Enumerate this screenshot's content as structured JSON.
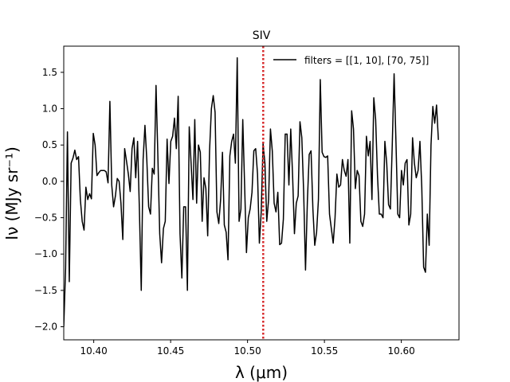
{
  "chart_data": {
    "type": "line",
    "title": "SIV",
    "xlabel": "λ (μm)",
    "ylabel": "Iν (MJy sr⁻¹)",
    "xlim": [
      10.3805,
      10.6375
    ],
    "ylim": [
      -2.18,
      1.86
    ],
    "xticks": [
      10.4,
      10.45,
      10.5,
      10.55,
      10.6
    ],
    "yticks": [
      -2.0,
      -1.5,
      -1.0,
      -0.5,
      0.0,
      0.5,
      1.0,
      1.5
    ],
    "grid": false,
    "legend_position": "top-right",
    "series": [
      {
        "name": "filters = [[1, 10], [70, 75]]",
        "color": "#000000",
        "x_start": 10.3805,
        "x_step": 0.0012,
        "values": [
          -2.0,
          -1.2,
          0.68,
          -1.38,
          0.25,
          0.32,
          0.43,
          0.3,
          0.34,
          -0.25,
          -0.55,
          -0.67,
          -0.08,
          -0.25,
          -0.17,
          -0.24,
          0.66,
          0.5,
          0.08,
          0.12,
          0.15,
          0.15,
          0.15,
          0.13,
          -0.02,
          1.1,
          -0.05,
          -0.35,
          -0.2,
          0.04,
          0.0,
          -0.3,
          -0.8,
          0.45,
          0.28,
          0.1,
          -0.14,
          0.45,
          0.6,
          0.05,
          0.55,
          -0.4,
          -1.5,
          0.3,
          0.77,
          0.3,
          -0.35,
          -0.45,
          0.18,
          0.1,
          1.32,
          0.35,
          -0.72,
          -1.12,
          -0.65,
          -0.55,
          0.58,
          -0.03,
          0.55,
          0.62,
          0.87,
          0.45,
          1.17,
          -0.72,
          -1.33,
          -0.35,
          -0.35,
          -1.5,
          0.75,
          0.25,
          -0.25,
          0.85,
          -0.3,
          0.5,
          0.4,
          -0.55,
          0.05,
          -0.1,
          -0.75,
          0.42,
          1.0,
          1.18,
          0.95,
          -0.42,
          -0.58,
          -0.25,
          0.4,
          -0.6,
          -0.7,
          -1.08,
          0.35,
          0.55,
          0.65,
          0.25,
          1.7,
          -0.55,
          -0.38,
          0.85,
          -0.05,
          -0.98,
          -0.5,
          -0.38,
          -0.15,
          0.42,
          0.45,
          0.1,
          -0.85,
          -0.42,
          0.52,
          0.25,
          -0.55,
          -0.25,
          0.72,
          0.42,
          -0.3,
          -0.42,
          -0.15,
          -0.87,
          -0.85,
          -0.52,
          0.65,
          0.65,
          -0.05,
          0.72,
          0.08,
          -0.72,
          -0.3,
          -0.2,
          0.82,
          0.6,
          -0.15,
          -1.22,
          -0.28,
          0.37,
          0.42,
          -0.38,
          -0.88,
          -0.7,
          -0.25,
          1.4,
          0.4,
          0.34,
          0.33,
          0.35,
          -0.45,
          -0.65,
          -0.85,
          -0.5,
          0.1,
          -0.08,
          -0.05,
          0.3,
          0.15,
          0.07,
          0.3,
          -0.85,
          0.97,
          0.72,
          -0.1,
          0.15,
          0.08,
          -0.55,
          -0.62,
          -0.45,
          0.62,
          0.35,
          0.55,
          -0.25,
          1.15,
          0.85,
          0.08,
          -0.45,
          -0.45,
          -0.5,
          0.55,
          0.25,
          -0.32,
          -0.38,
          0.5,
          1.48,
          0.55,
          -0.45,
          -0.5,
          0.15,
          -0.05,
          0.25,
          0.3,
          -0.6,
          -0.45,
          0.6,
          0.25,
          0.05,
          0.15,
          0.55,
          -0.08,
          -1.18,
          -1.25,
          -0.45,
          -0.88,
          0.5,
          1.03,
          0.8,
          1.05,
          0.57
        ]
      }
    ],
    "annotations": [
      {
        "type": "vline",
        "x": 10.5102,
        "color": "#d62728",
        "style": "dotted"
      }
    ]
  }
}
